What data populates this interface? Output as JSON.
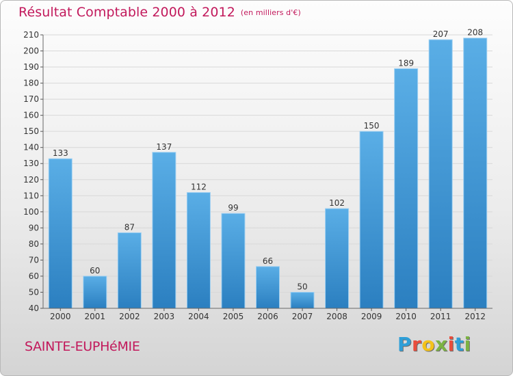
{
  "header": {
    "title": "Résultat Comptable 2000 à 2012",
    "subtitle": "(en milliers d'€)"
  },
  "footer": {
    "town": "SAINTE-EUPHéMIE",
    "logo": "Proxiti",
    "logo_colors": [
      "#2e9fd8",
      "#e94c3c",
      "#f4c21a",
      "#7cb342",
      "#e94c3c",
      "#2e9fd8",
      "#7cb342"
    ]
  },
  "chart_data": {
    "type": "bar",
    "categories": [
      "2000",
      "2001",
      "2002",
      "2003",
      "2004",
      "2005",
      "2006",
      "2007",
      "2008",
      "2009",
      "2010",
      "2011",
      "2012"
    ],
    "values": [
      133,
      60,
      87,
      137,
      112,
      99,
      66,
      50,
      102,
      150,
      189,
      207,
      208
    ],
    "data_labels": [
      "133",
      "60",
      "87",
      "137",
      "112",
      "99",
      "66",
      "50",
      "102",
      "150",
      "189",
      "207",
      "208"
    ],
    "ylim": [
      40,
      210
    ],
    "ytick_step": 10,
    "grid": true,
    "bar_color_top": "#5aaee6",
    "bar_color_bottom": "#2b7fc0"
  }
}
